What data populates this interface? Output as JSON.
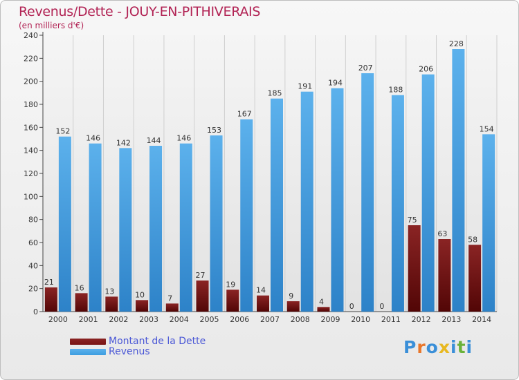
{
  "chart_data": {
    "type": "bar",
    "title": "Revenus/Dette - JOUY-EN-PITHIVERAIS",
    "subtitle": "(en milliers d'€)",
    "categories": [
      "2000",
      "2001",
      "2002",
      "2003",
      "2004",
      "2005",
      "2006",
      "2007",
      "2008",
      "2009",
      "2010",
      "2011",
      "2012",
      "2013",
      "2014"
    ],
    "series": [
      {
        "name": "Montant de la Dette",
        "color": "#7a1414",
        "values": [
          21,
          16,
          13,
          10,
          7,
          27,
          19,
          14,
          9,
          4,
          0,
          0,
          75,
          63,
          58
        ]
      },
      {
        "name": "Revenus",
        "color": "#3d9de0",
        "values": [
          152,
          146,
          142,
          144,
          146,
          153,
          167,
          185,
          191,
          194,
          207,
          188,
          206,
          228,
          154
        ]
      }
    ],
    "yticks": [
      0,
      20,
      40,
      60,
      80,
      100,
      120,
      140,
      160,
      180,
      200,
      220,
      240
    ],
    "ylim": [
      0,
      240
    ],
    "grid": "vertical",
    "legend": "bottom-left"
  },
  "logo": {
    "text": "Proxiti",
    "letter_colors": [
      "#3a8fd8",
      "#e8762a",
      "#3a8fd8",
      "#e8b820",
      "#3a8fd8",
      "#6ab23a",
      "#3a8fd8"
    ]
  }
}
